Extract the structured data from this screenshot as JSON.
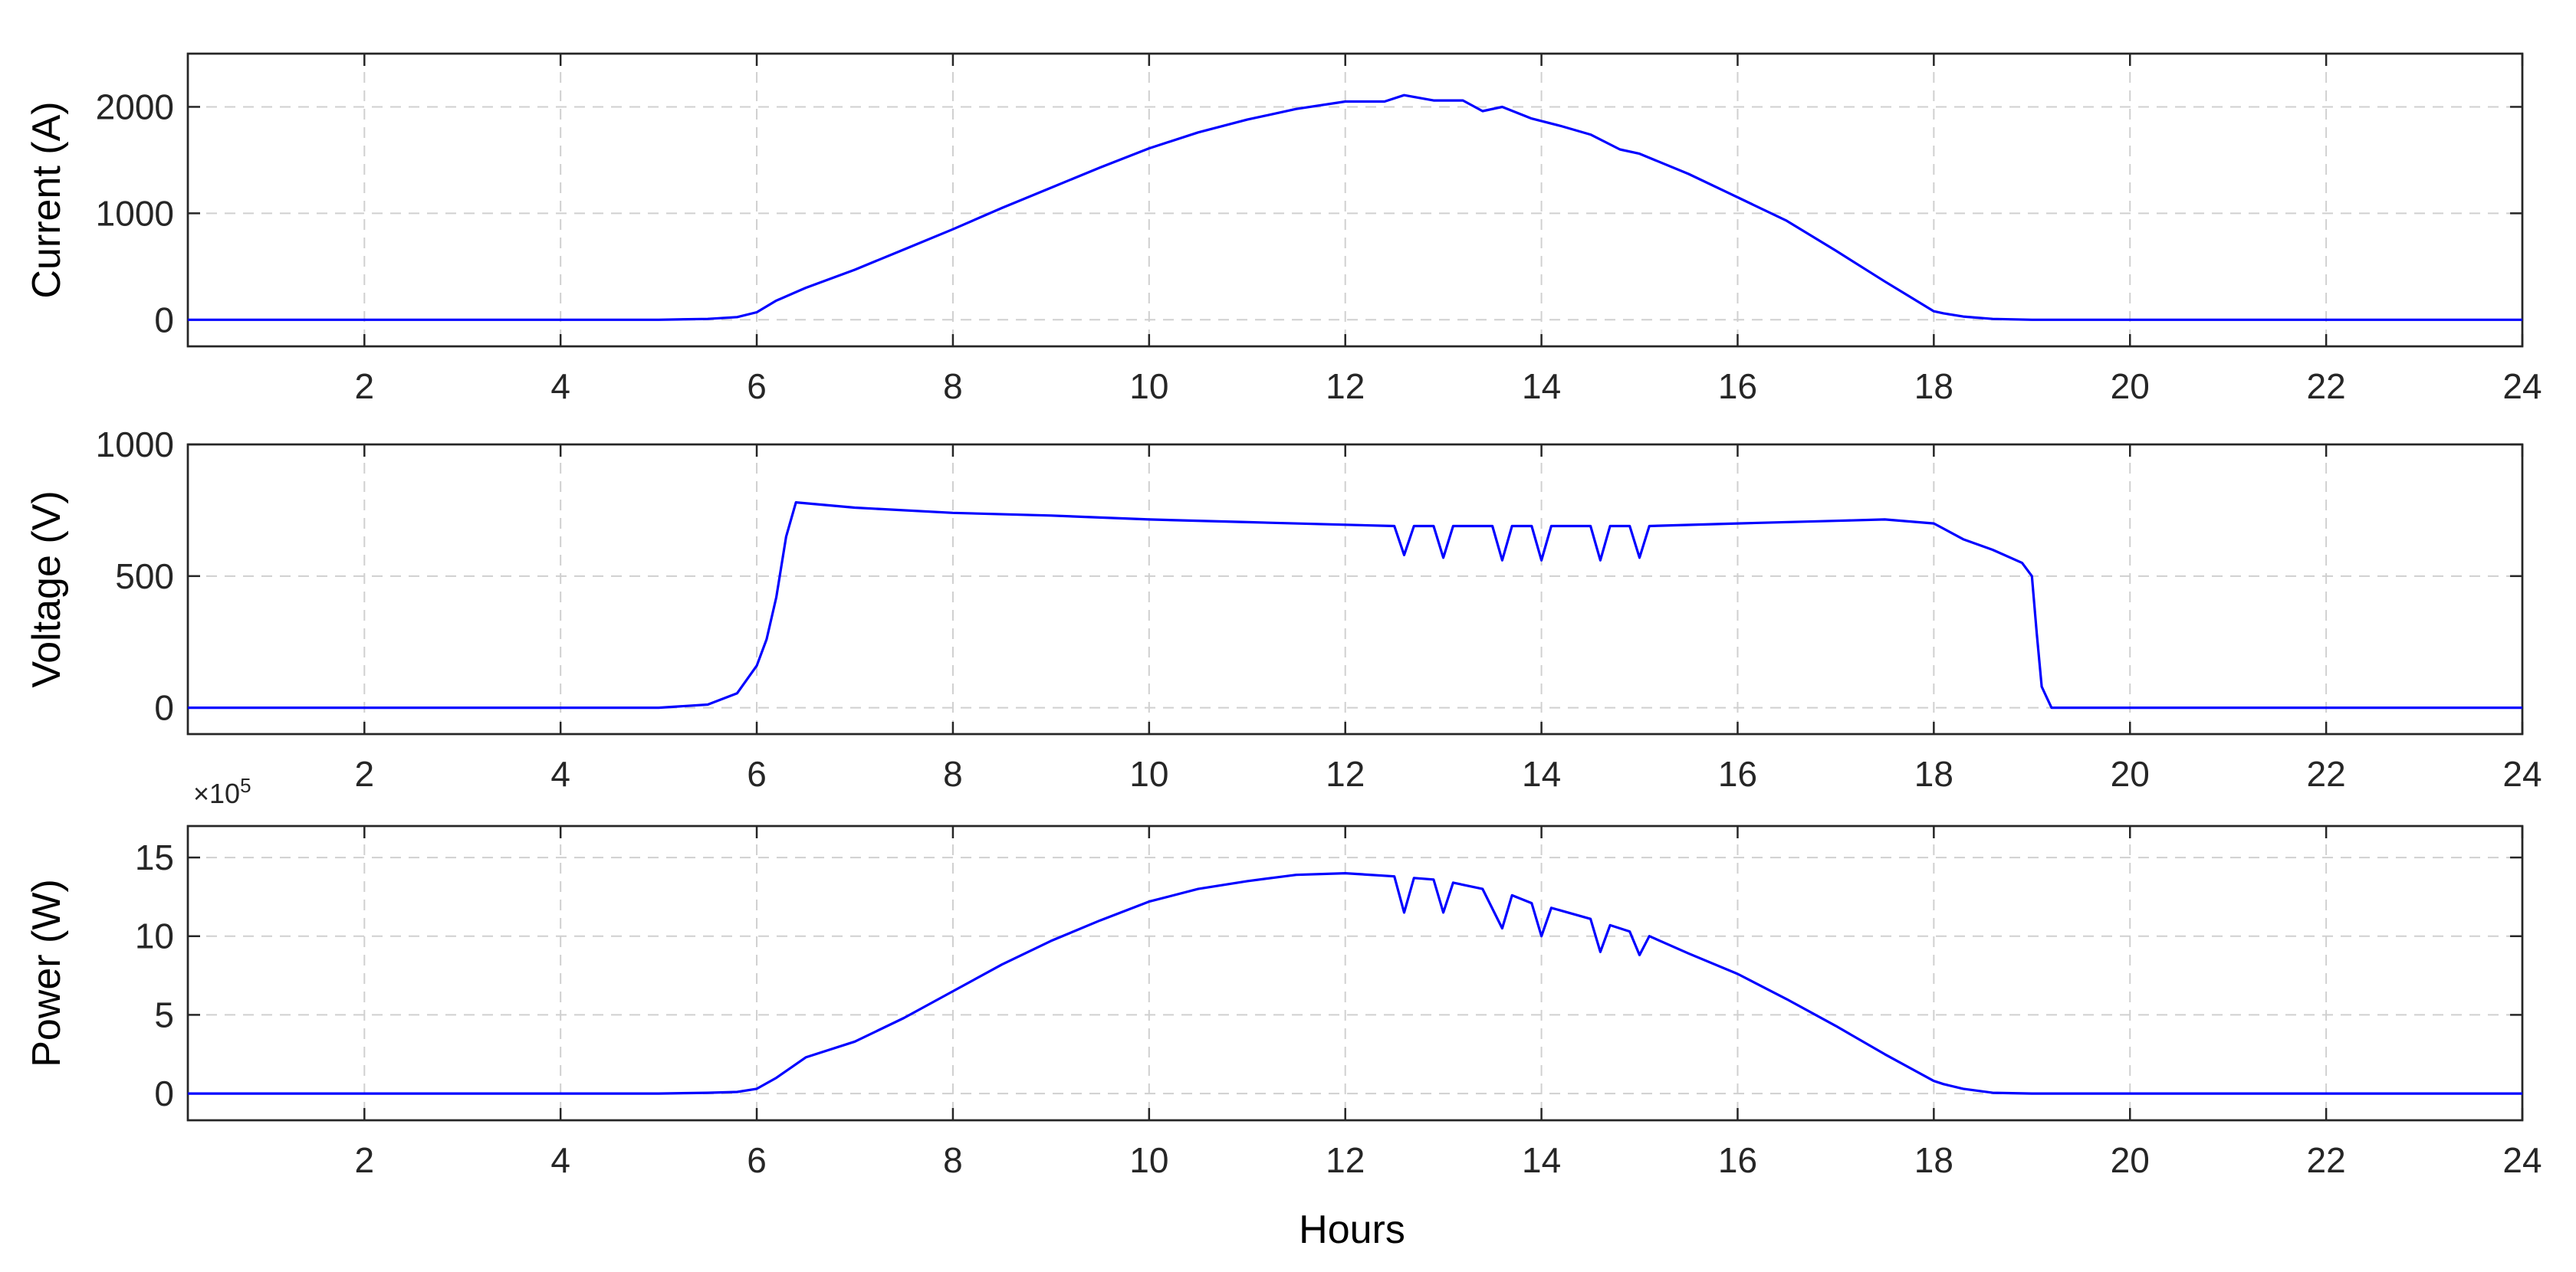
{
  "chart_data": [
    {
      "type": "line",
      "ylabel": "Current (A)",
      "xlabel": "",
      "xlim": [
        0.2,
        24
      ],
      "ylim": [
        -250,
        2500
      ],
      "xticks": [
        2,
        4,
        6,
        8,
        10,
        12,
        14,
        16,
        18,
        20,
        22,
        24
      ],
      "yticks": [
        0,
        1000,
        2000
      ],
      "grid": true,
      "series": [
        {
          "color": "#0000ff",
          "x": [
            0.2,
            5.0,
            5.5,
            5.8,
            6.0,
            6.2,
            6.5,
            7.0,
            7.5,
            8.0,
            8.5,
            9.0,
            9.5,
            10.0,
            10.5,
            11.0,
            11.5,
            12.0,
            12.4,
            12.6,
            12.9,
            13.2,
            13.4,
            13.6,
            13.9,
            14.2,
            14.5,
            14.8,
            15.0,
            15.5,
            16.0,
            16.5,
            17.0,
            17.5,
            18.0,
            18.1,
            18.3,
            18.6,
            19.0,
            24.0
          ],
          "y": [
            0,
            0,
            8,
            25,
            70,
            180,
            300,
            470,
            660,
            850,
            1050,
            1240,
            1430,
            1610,
            1760,
            1880,
            1980,
            2050,
            2050,
            2110,
            2060,
            2060,
            1960,
            2000,
            1890,
            1820,
            1740,
            1600,
            1560,
            1370,
            1150,
            930,
            650,
            360,
            80,
            60,
            30,
            8,
            0,
            0
          ]
        }
      ]
    },
    {
      "type": "line",
      "ylabel": "Voltage (V)",
      "xlabel": "",
      "xlim": [
        0.2,
        24
      ],
      "ylim": [
        -100,
        1000
      ],
      "xticks": [
        2,
        4,
        6,
        8,
        10,
        12,
        14,
        16,
        18,
        20,
        22,
        24
      ],
      "yticks": [
        0,
        500,
        1000
      ],
      "grid": true,
      "series": [
        {
          "color": "#0000ff",
          "x": [
            0.2,
            5.0,
            5.5,
            5.8,
            6.0,
            6.1,
            6.2,
            6.3,
            6.4,
            7.0,
            8.0,
            9.0,
            10.0,
            11.0,
            12.0,
            12.5,
            12.6,
            12.7,
            12.9,
            13.0,
            13.1,
            13.5,
            13.6,
            13.7,
            13.9,
            14.0,
            14.1,
            14.5,
            14.6,
            14.7,
            14.9,
            15.0,
            15.1,
            16.0,
            17.0,
            17.5,
            18.0,
            18.3,
            18.6,
            18.9,
            19.0,
            19.05,
            19.1,
            19.15,
            19.2,
            24.0
          ],
          "y": [
            0,
            0,
            12,
            55,
            160,
            260,
            420,
            650,
            780,
            760,
            740,
            730,
            715,
            705,
            695,
            690,
            580,
            690,
            690,
            570,
            690,
            690,
            560,
            690,
            690,
            560,
            690,
            690,
            560,
            690,
            690,
            570,
            690,
            700,
            710,
            715,
            700,
            640,
            600,
            550,
            500,
            280,
            80,
            40,
            0,
            0
          ]
        }
      ]
    },
    {
      "type": "line",
      "ylabel": "Power (W)",
      "xlabel": "Hours",
      "exponent_label": "×10^5",
      "exponent_base": "×10",
      "exponent_power": "5",
      "xlim": [
        0.2,
        24
      ],
      "ylim": [
        -1.7,
        17
      ],
      "xticks": [
        2,
        4,
        6,
        8,
        10,
        12,
        14,
        16,
        18,
        20,
        22,
        24
      ],
      "yticks": [
        0,
        5,
        10,
        15
      ],
      "grid": true,
      "series": [
        {
          "color": "#0000ff",
          "x": [
            0.2,
            5.0,
            5.5,
            5.8,
            6.0,
            6.2,
            6.5,
            7.0,
            7.5,
            8.0,
            8.5,
            9.0,
            9.5,
            10.0,
            10.5,
            11.0,
            11.5,
            12.0,
            12.5,
            12.6,
            12.7,
            12.9,
            13.0,
            13.1,
            13.4,
            13.6,
            13.7,
            13.9,
            14.0,
            14.1,
            14.5,
            14.6,
            14.7,
            14.9,
            15.0,
            15.1,
            15.5,
            16.0,
            16.5,
            17.0,
            17.5,
            18.0,
            18.1,
            18.3,
            18.6,
            19.0,
            24.0
          ],
          "y": [
            0,
            0,
            0.05,
            0.1,
            0.3,
            1.0,
            2.3,
            3.3,
            4.8,
            6.5,
            8.2,
            9.7,
            11.0,
            12.2,
            13.0,
            13.5,
            13.9,
            14.0,
            13.8,
            11.5,
            13.7,
            13.6,
            11.5,
            13.4,
            13.0,
            10.5,
            12.6,
            12.1,
            10.0,
            11.8,
            11.1,
            9.0,
            10.7,
            10.3,
            8.8,
            10.0,
            8.9,
            7.6,
            6.0,
            4.3,
            2.5,
            0.8,
            0.6,
            0.3,
            0.05,
            0,
            0
          ]
        }
      ]
    }
  ]
}
